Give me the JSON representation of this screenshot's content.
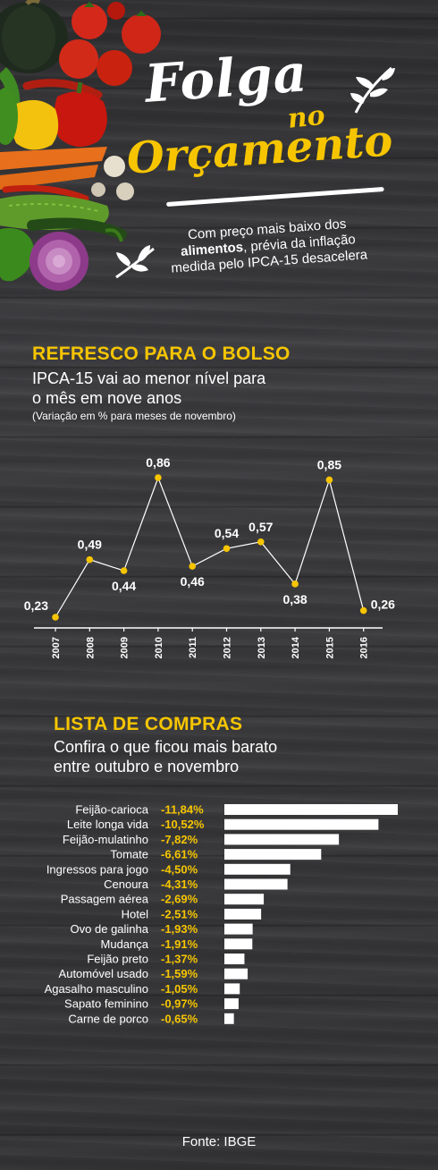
{
  "header": {
    "title_line1": "Folga",
    "title_line2": "no",
    "title_line3": "Orçamento",
    "subtitle_part1": "Com preço mais baixo dos",
    "subtitle_bold": "alimentos",
    "subtitle_part2": ", prévia da inflação",
    "subtitle_part3": "medida pelo IPCA-15 desacelera"
  },
  "section1": {
    "title": "REFRESCO PARA O BOLSO",
    "subtitle_line1": "IPCA-15 vai ao menor nível para",
    "subtitle_line2": "o mês em nove anos",
    "note": "(Variação em % para meses de novembro)"
  },
  "section2": {
    "title": "LISTA DE COMPRAS",
    "subtitle_line1": "Confira o que ficou mais barato",
    "subtitle_line2": "entre outubro e novembro"
  },
  "source": "Fonte: IBGE",
  "colors": {
    "accent": "#f6c500",
    "line": "#ffffff",
    "bar": "#ffffff",
    "label": "#ffffff"
  },
  "icons": [
    "vegetables-illustration",
    "leaf-icon",
    "leaf-icon"
  ],
  "chart_data": [
    {
      "type": "line",
      "title": "REFRESCO PARA O BOLSO",
      "x": [
        "2007",
        "2008",
        "2009",
        "2010",
        "2011",
        "2012",
        "2013",
        "2014",
        "2015",
        "2016"
      ],
      "x_labels": [
        "2007",
        "2008",
        "2009",
        "2010",
        "2011",
        "2012",
        "2013",
        "2014",
        "2015",
        "2016"
      ],
      "values": [
        0.23,
        0.49,
        0.44,
        0.86,
        0.46,
        0.54,
        0.57,
        0.38,
        0.85,
        0.26
      ],
      "value_labels": [
        "0,23",
        "0,49",
        "0,44",
        "0,86",
        "0,46",
        "0,54",
        "0,57",
        "0,38",
        "0,85",
        "0,26"
      ],
      "ylim": [
        0.2,
        0.9
      ],
      "grid": false
    },
    {
      "type": "bar",
      "orientation": "horizontal",
      "title": "LISTA DE COMPRAS",
      "categories": [
        "Feijão-carioca",
        "Leite longa vida",
        "Feijão-mulatinho",
        "Tomate",
        "Ingressos para jogo",
        "Cenoura",
        "Passagem aérea",
        "Hotel",
        "Ovo de galinha",
        "Mudança",
        "Feijão preto",
        "Automóvel usado",
        "Agasalho masculino",
        "Sapato feminino",
        "Carne de porco"
      ],
      "values": [
        -11.84,
        -10.52,
        -7.82,
        -6.61,
        -4.5,
        -4.31,
        -2.69,
        -2.51,
        -1.93,
        -1.91,
        -1.37,
        -1.59,
        -1.05,
        -0.97,
        -0.65
      ],
      "value_labels": [
        "-11,84%",
        "-10,52%",
        "-7,82%",
        "-6,61%",
        "-4,50%",
        "-4,31%",
        "-2,69%",
        "-2,51%",
        "-1,93%",
        "-1,91%",
        "-1,37%",
        "-1,59%",
        "-1,05%",
        "-0,97%",
        "-0,65%"
      ],
      "grid": false
    }
  ]
}
